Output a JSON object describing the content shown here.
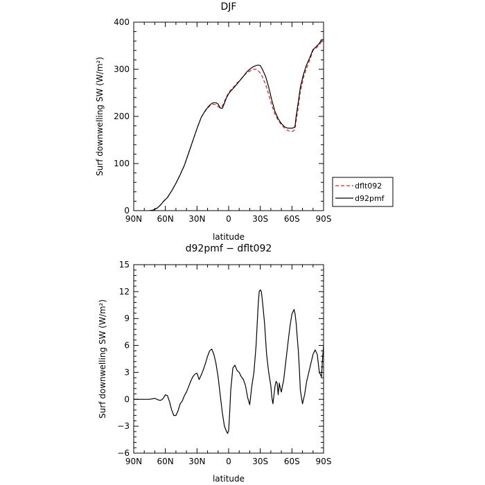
{
  "chart_data": [
    {
      "type": "line",
      "title": "DJF",
      "xlabel": "latitude",
      "ylabel": "Surf downwelling SW (W/m²)",
      "xlim": [
        90,
        -90
      ],
      "ylim": [
        0,
        400
      ],
      "xticks": [
        90,
        60,
        30,
        0,
        -30,
        -60,
        -90
      ],
      "xtick_labels": [
        "90N",
        "60N",
        "30N",
        "0",
        "30S",
        "60S",
        "90S"
      ],
      "yticks": [
        0,
        100,
        200,
        300,
        400
      ],
      "ytick_labels": [
        "0",
        "100",
        "200",
        "300",
        "400"
      ],
      "legend_position": "right",
      "series": [
        {
          "name": "dflt092",
          "color": "#d62020",
          "dash": true,
          "x": [
            75,
            72,
            68,
            65,
            62,
            58,
            54,
            50,
            46,
            42,
            38,
            34,
            30,
            26,
            22,
            18,
            15,
            12,
            10,
            8,
            6,
            4,
            2,
            0,
            -2,
            -5,
            -8,
            -11,
            -14,
            -17,
            -20,
            -23,
            -26,
            -28,
            -30,
            -32,
            -35,
            -38,
            -41,
            -44,
            -47,
            -50,
            -53,
            -56,
            -58,
            -60,
            -62,
            -63,
            -64,
            -66,
            -68,
            -71,
            -74,
            -77,
            -80,
            -83,
            -86,
            -88,
            -90
          ],
          "y": [
            0,
            1,
            5,
            11,
            19,
            28,
            42,
            58,
            76,
            96,
            122,
            148,
            174,
            198,
            212,
            222,
            226,
            225,
            221,
            218,
            222,
            232,
            242,
            250,
            256,
            263,
            271,
            277,
            286,
            292,
            296,
            300,
            300,
            297,
            292,
            284,
            268,
            247,
            223,
            204,
            192,
            182,
            175,
            170,
            169,
            168,
            170,
            175,
            190,
            220,
            253,
            283,
            303,
            320,
            340,
            345,
            352,
            358,
            357
          ]
        },
        {
          "name": "d92pmf",
          "color": "#000000",
          "dash": false,
          "x": [
            75,
            72,
            68,
            65,
            62,
            58,
            54,
            50,
            46,
            42,
            38,
            34,
            30,
            26,
            22,
            18,
            15,
            12,
            10,
            8,
            6,
            4,
            2,
            0,
            -2,
            -5,
            -8,
            -11,
            -14,
            -17,
            -20,
            -23,
            -26,
            -28,
            -30,
            -32,
            -35,
            -38,
            -41,
            -44,
            -47,
            -50,
            -53,
            -56,
            -58,
            -60,
            -62,
            -63,
            -64,
            -66,
            -68,
            -71,
            -74,
            -77,
            -80,
            -83,
            -86,
            -88,
            -90
          ],
          "y": [
            0,
            1,
            5,
            11,
            19,
            28,
            42,
            58,
            76,
            96,
            122,
            148,
            174,
            198,
            213,
            224,
            229,
            229,
            226,
            218,
            217,
            228,
            240,
            248,
            254,
            261,
            269,
            277,
            285,
            294,
            300,
            305,
            308,
            309,
            308,
            300,
            285,
            262,
            234,
            210,
            195,
            185,
            178,
            175,
            175,
            175,
            176,
            180,
            200,
            230,
            262,
            290,
            310,
            325,
            342,
            348,
            355,
            363,
            363
          ]
        }
      ]
    },
    {
      "type": "line",
      "title": "d92pmf − dflt092",
      "xlabel": "latitude",
      "ylabel": "Surf downwelling SW (W/m²)",
      "xlim": [
        90,
        -90
      ],
      "ylim": [
        -6,
        15
      ],
      "xticks": [
        90,
        60,
        30,
        0,
        -30,
        -60,
        -90
      ],
      "xtick_labels": [
        "90N",
        "60N",
        "30N",
        "0",
        "30S",
        "60S",
        "90S"
      ],
      "yticks": [
        -6,
        -3,
        0,
        3,
        6,
        9,
        12,
        15
      ],
      "ytick_labels": [
        "−6",
        "−3",
        "0",
        "3",
        "6",
        "9",
        "12",
        "15"
      ],
      "series": [
        {
          "color": "#000000",
          "x": [
            90,
            75,
            70,
            66,
            64,
            62,
            60,
            58,
            56,
            54,
            52,
            50,
            48,
            46,
            44,
            42,
            40,
            38,
            36,
            34,
            32,
            30,
            28,
            26,
            24,
            22,
            20,
            18,
            16,
            14,
            13,
            12,
            10,
            8,
            6,
            4,
            2,
            1,
            0,
            -1,
            -2,
            -4,
            -6,
            -8,
            -10,
            -12,
            -14,
            -16,
            -18,
            -20,
            -22,
            -24,
            -26,
            -28,
            -29,
            -30,
            -31,
            -32,
            -34,
            -36,
            -38,
            -40,
            -41,
            -42,
            -44,
            -45,
            -46,
            -47,
            -48,
            -49,
            -50,
            -51,
            -52,
            -54,
            -56,
            -58,
            -60,
            -62,
            -63,
            -64,
            -65,
            -66,
            -67,
            -68,
            -70,
            -72,
            -74,
            -76,
            -78,
            -80,
            -82,
            -84,
            -86,
            -88,
            -89,
            -90
          ],
          "y": [
            0,
            0,
            0.1,
            -0.1,
            -0.1,
            0.1,
            0.5,
            0.4,
            -0.3,
            -1.2,
            -1.8,
            -1.8,
            -1.3,
            -0.5,
            -0.2,
            0.4,
            0.8,
            1.4,
            2.0,
            2.5,
            2.8,
            2.9,
            2.2,
            2.7,
            3.3,
            4.0,
            4.8,
            5.4,
            5.6,
            5.0,
            4.5,
            4.0,
            2.5,
            0.5,
            -1.5,
            -3.0,
            -3.6,
            -3.8,
            -3.5,
            -1.5,
            1.0,
            3.5,
            3.8,
            3.2,
            3.0,
            2.5,
            2.2,
            1.5,
            0.2,
            -0.6,
            1.5,
            3.0,
            6.0,
            10.5,
            12.0,
            12.2,
            12.0,
            11.0,
            8.5,
            5.0,
            3.0,
            1.5,
            0.2,
            -0.5,
            1.5,
            2.0,
            1.8,
            0.5,
            1.8,
            1.2,
            0.8,
            1.5,
            2.0,
            4.0,
            6.0,
            8.0,
            9.5,
            10.0,
            9.5,
            8.5,
            7.0,
            5.5,
            3.5,
            1.0,
            -0.5,
            0.5,
            2.0,
            3.0,
            4.0,
            5.0,
            5.5,
            5.0,
            3.0,
            2.5,
            4.5,
            6.0
          ]
        }
      ]
    }
  ]
}
